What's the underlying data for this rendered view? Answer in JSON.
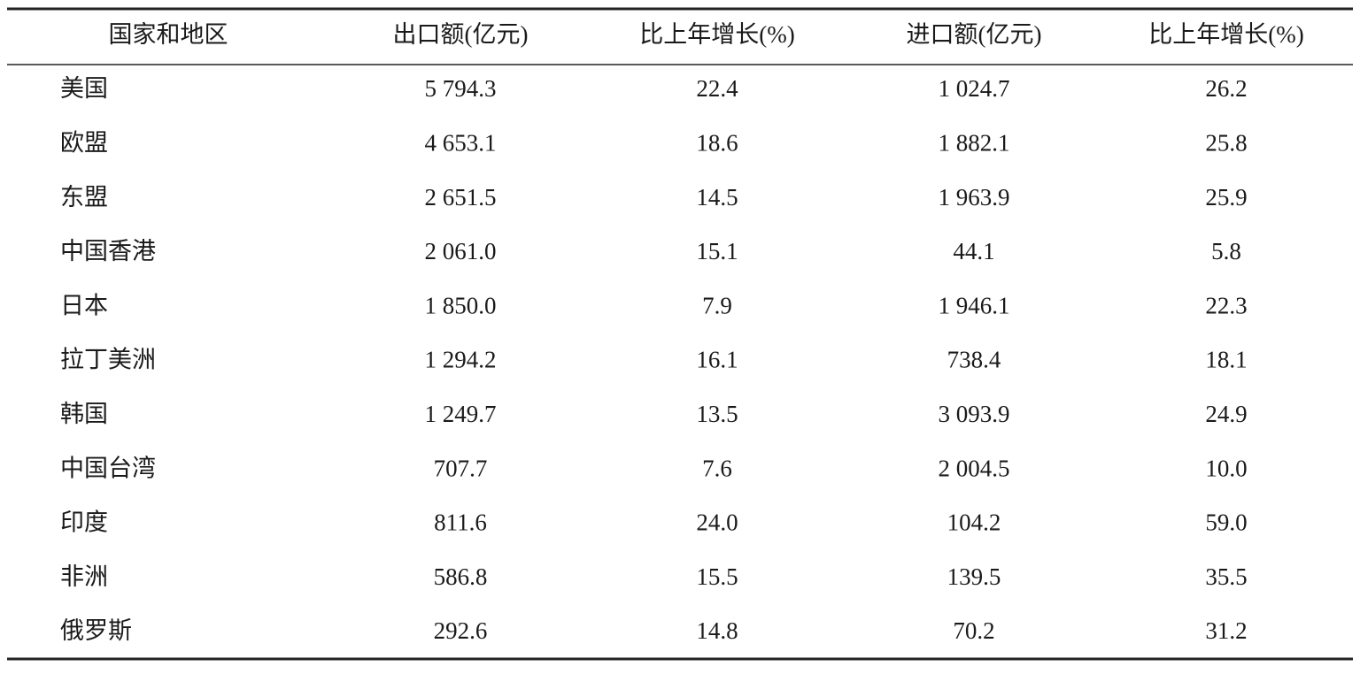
{
  "table": {
    "header": [
      "国家和地区",
      "出口额(亿元)",
      "比上年增长(%)",
      "进口额(亿元)",
      "比上年增长(%)"
    ],
    "rows": [
      [
        "美国",
        "5 794.3",
        "22.4",
        "1 024.7",
        "26.2"
      ],
      [
        "欧盟",
        "4 653.1",
        "18.6",
        "1 882.1",
        "25.8"
      ],
      [
        "东盟",
        "2 651.5",
        "14.5",
        "1 963.9",
        "25.9"
      ],
      [
        "中国香港",
        "2 061.0",
        "15.1",
        "44.1",
        "5.8"
      ],
      [
        "日本",
        "1 850.0",
        "7.9",
        "1 946.1",
        "22.3"
      ],
      [
        "拉丁美洲",
        "1 294.2",
        "16.1",
        "738.4",
        "18.1"
      ],
      [
        "韩国",
        "1 249.7",
        "13.5",
        "3 093.9",
        "24.9"
      ],
      [
        "中国台湾",
        "707.7",
        "7.6",
        "2 004.5",
        "10.0"
      ],
      [
        "印度",
        "811.6",
        "24.0",
        "104.2",
        "59.0"
      ],
      [
        "非洲",
        "586.8",
        "15.5",
        "139.5",
        "35.5"
      ],
      [
        "俄罗斯",
        "292.6",
        "14.8",
        "70.2",
        "31.2"
      ]
    ]
  }
}
